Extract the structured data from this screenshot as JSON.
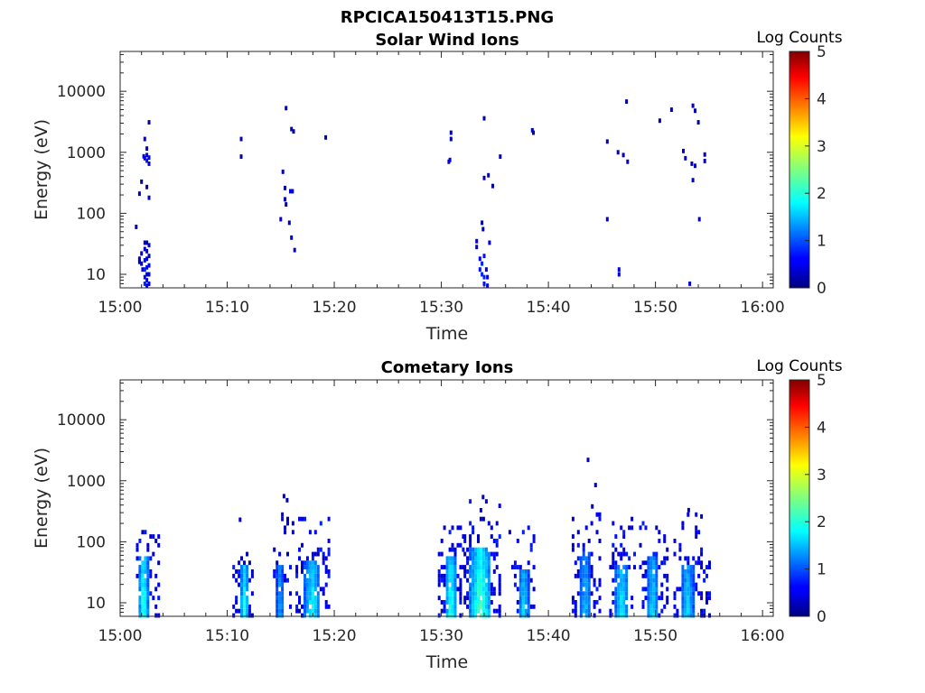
{
  "figure_title": "RPCICA150413T15.PNG",
  "colorbar": {
    "label": "Log Counts",
    "range": [
      0,
      5
    ],
    "ticks": [
      "0",
      "1",
      "2",
      "3",
      "4",
      "5"
    ],
    "colormap": "jet"
  },
  "chart_data": [
    {
      "type": "heatmap",
      "title": "Solar Wind Ions",
      "xlabel": "Time",
      "ylabel": "Energy (eV)",
      "xlim_minutes_after_15_00": [
        0,
        61
      ],
      "x_ticks": [
        "15:00",
        "15:10",
        "15:20",
        "15:30",
        "15:40",
        "15:50",
        "16:00"
      ],
      "y_scale": "log",
      "ylim": [
        6,
        45000
      ],
      "y_ticks": [
        "10",
        "100",
        "1000",
        "10000"
      ],
      "cells": [
        [
          1.8,
          18,
          0.4
        ],
        [
          1.8,
          16,
          0.3
        ],
        [
          2.0,
          22,
          0.5
        ],
        [
          2.0,
          15,
          0.3
        ],
        [
          2.1,
          12,
          0.4
        ],
        [
          2.3,
          33,
          0.4
        ],
        [
          2.3,
          26,
          0.6
        ],
        [
          2.3,
          17,
          0.7
        ],
        [
          2.3,
          12,
          0.8
        ],
        [
          2.3,
          9,
          0.7
        ],
        [
          2.3,
          7,
          0.8
        ],
        [
          2.5,
          33,
          0.3
        ],
        [
          2.5,
          24,
          0.5
        ],
        [
          2.5,
          18,
          0.6
        ],
        [
          2.5,
          13,
          0.7
        ],
        [
          2.5,
          10,
          0.5
        ],
        [
          2.5,
          8,
          0.6
        ],
        [
          2.5,
          6.5,
          0.5
        ],
        [
          2.7,
          30,
          0.4
        ],
        [
          2.7,
          20,
          0.3
        ],
        [
          2.7,
          14,
          0.6
        ],
        [
          2.7,
          10,
          0.4
        ],
        [
          2.7,
          7,
          0.5
        ],
        [
          1.5,
          60,
          0.3
        ],
        [
          1.8,
          210,
          0.3
        ],
        [
          2.0,
          330,
          0.2
        ],
        [
          2.3,
          1650,
          0.5
        ],
        [
          2.3,
          800,
          0.6
        ],
        [
          2.5,
          900,
          0.6
        ],
        [
          2.5,
          730,
          0.7
        ],
        [
          2.7,
          820,
          0.5
        ],
        [
          2.7,
          650,
          0.4
        ],
        [
          2.2,
          860,
          0.5
        ],
        [
          2.5,
          1150,
          0.3
        ],
        [
          2.7,
          3100,
          0.2
        ],
        [
          2.5,
          270,
          0.2
        ],
        [
          2.7,
          180,
          0.3
        ],
        [
          11.3,
          1650,
          0.3
        ],
        [
          11.3,
          850,
          0.3
        ],
        [
          15.5,
          5300,
          0.3
        ],
        [
          16.0,
          2400,
          0.3
        ],
        [
          16.2,
          2200,
          0.2
        ],
        [
          19.2,
          1750,
          0.2
        ],
        [
          15.2,
          480,
          0.3
        ],
        [
          15.4,
          260,
          0.2
        ],
        [
          15.4,
          170,
          0.3
        ],
        [
          15.5,
          140,
          0.2
        ],
        [
          15.0,
          80,
          0.5
        ],
        [
          15.9,
          230,
          0.4
        ],
        [
          16.1,
          230,
          0.4
        ],
        [
          15.8,
          70,
          0.3
        ],
        [
          16.0,
          40,
          0.4
        ],
        [
          16.3,
          25,
          0.4
        ],
        [
          30.9,
          2100,
          0.3
        ],
        [
          30.9,
          1650,
          0.3
        ],
        [
          30.8,
          750,
          0.5
        ],
        [
          30.7,
          700,
          0.4
        ],
        [
          34.0,
          3600,
          0.2
        ],
        [
          34.0,
          380,
          0.3
        ],
        [
          34.4,
          420,
          0.3
        ],
        [
          34.8,
          280,
          0.2
        ],
        [
          35.5,
          850,
          0.3
        ],
        [
          38.5,
          2300,
          0.3
        ],
        [
          38.6,
          2100,
          0.2
        ],
        [
          33.8,
          70,
          0.2
        ],
        [
          33.9,
          55,
          0.3
        ],
        [
          33.3,
          35,
          0.4
        ],
        [
          33.3,
          28,
          0.3
        ],
        [
          33.6,
          18,
          0.6
        ],
        [
          33.6,
          12,
          0.7
        ],
        [
          33.8,
          15,
          0.8
        ],
        [
          33.8,
          10,
          0.8
        ],
        [
          34.0,
          20,
          0.7
        ],
        [
          34.0,
          9,
          0.8
        ],
        [
          34.0,
          7,
          0.7
        ],
        [
          34.2,
          12,
          0.6
        ],
        [
          34.3,
          9,
          0.6
        ],
        [
          34.3,
          6.5,
          0.5
        ],
        [
          34.5,
          33,
          0.4
        ],
        [
          45.5,
          1500,
          0.3
        ],
        [
          46.5,
          1000,
          0.3
        ],
        [
          47.0,
          900,
          0.3
        ],
        [
          47.4,
          700,
          0.4
        ],
        [
          47.3,
          6800,
          0.2
        ],
        [
          50.4,
          3300,
          0.2
        ],
        [
          51.5,
          5000,
          0.2
        ],
        [
          52.6,
          1050,
          0.4
        ],
        [
          52.8,
          800,
          0.5
        ],
        [
          53.5,
          5800,
          0.3
        ],
        [
          53.7,
          4800,
          0.3
        ],
        [
          54.0,
          3100,
          0.2
        ],
        [
          54.6,
          920,
          0.3
        ],
        [
          54.6,
          720,
          0.4
        ],
        [
          53.4,
          650,
          0.3
        ],
        [
          53.7,
          600,
          0.4
        ],
        [
          53.5,
          350,
          0.4
        ],
        [
          54.1,
          80,
          0.5
        ],
        [
          45.5,
          80,
          0.4
        ],
        [
          46.6,
          12,
          0.6
        ],
        [
          46.6,
          10,
          0.5
        ],
        [
          53.2,
          7,
          0.4
        ]
      ]
    },
    {
      "type": "heatmap",
      "title": "Cometary Ions",
      "xlabel": "Time",
      "ylabel": "Energy (eV)",
      "xlim_minutes_after_15_00": [
        0,
        61
      ],
      "x_ticks": [
        "15:00",
        "15:10",
        "15:20",
        "15:30",
        "15:40",
        "15:50",
        "16:00"
      ],
      "y_scale": "log",
      "ylim": [
        6,
        45000
      ],
      "y_ticks": [
        "10",
        "100",
        "1000",
        "10000"
      ],
      "clusters": [
        {
          "t0": 1.6,
          "t1": 3.6,
          "core_t0": 1.8,
          "core_t1": 2.6,
          "core_top": 60,
          "e_top": 240,
          "peak": 2.2,
          "seed": 3,
          "density": 0.55,
          "scatter": 18
        },
        {
          "t0": 10.6,
          "t1": 12.4,
          "core_t0": 11.2,
          "core_t1": 12.0,
          "core_top": 45,
          "e_top": 100,
          "peak": 1.9,
          "seed": 7,
          "density": 0.5,
          "scatter": 10
        },
        {
          "t0": 14.4,
          "t1": 16.2,
          "core_t0": 14.6,
          "core_t1": 15.3,
          "core_top": 40,
          "e_top": 300,
          "peak": 1.2,
          "seed": 11,
          "density": 0.3,
          "scatter": 26
        },
        {
          "t0": 16.5,
          "t1": 19.7,
          "core_t0": 17.2,
          "core_t1": 18.7,
          "core_top": 50,
          "e_top": 250,
          "peak": 1.8,
          "seed": 13,
          "density": 0.55,
          "scatter": 30
        },
        {
          "t0": 29.8,
          "t1": 32.2,
          "core_t0": 30.4,
          "core_t1": 31.4,
          "core_top": 60,
          "e_top": 190,
          "peak": 2.1,
          "seed": 17,
          "density": 0.6,
          "scatter": 22
        },
        {
          "t0": 32.2,
          "t1": 35.6,
          "core_t0": 32.7,
          "core_t1": 34.6,
          "core_top": 80,
          "e_top": 500,
          "peak": 2.3,
          "seed": 19,
          "density": 0.6,
          "scatter": 35
        },
        {
          "t0": 36.4,
          "t1": 38.8,
          "core_t0": 37.2,
          "core_t1": 38.2,
          "core_top": 35,
          "e_top": 180,
          "peak": 1.6,
          "seed": 23,
          "density": 0.45,
          "scatter": 16
        },
        {
          "t0": 42.3,
          "t1": 44.8,
          "core_t0": 42.9,
          "core_t1": 44.0,
          "core_top": 70,
          "e_top": 300,
          "peak": 1.3,
          "seed": 29,
          "density": 0.5,
          "scatter": 24
        },
        {
          "t0": 45.8,
          "t1": 48.2,
          "core_t0": 46.2,
          "core_t1": 47.5,
          "core_top": 40,
          "e_top": 260,
          "peak": 1.7,
          "seed": 31,
          "density": 0.5,
          "scatter": 18
        },
        {
          "t0": 48.6,
          "t1": 51.3,
          "core_t0": 49.2,
          "core_t1": 50.3,
          "core_top": 55,
          "e_top": 220,
          "peak": 1.6,
          "seed": 37,
          "density": 0.5,
          "scatter": 20
        },
        {
          "t0": 51.8,
          "t1": 55.2,
          "core_t0": 52.4,
          "core_t1": 53.6,
          "core_top": 45,
          "e_top": 320,
          "peak": 1.5,
          "seed": 41,
          "density": 0.45,
          "scatter": 22
        }
      ],
      "cells": [
        [
          43.7,
          2200,
          0.4
        ],
        [
          44.4,
          850,
          0.3
        ],
        [
          44.1,
          380,
          0.3
        ],
        [
          15.3,
          560,
          0.3
        ],
        [
          15.6,
          480,
          0.2
        ],
        [
          11.2,
          230,
          0.3
        ],
        [
          33.9,
          540,
          0.3
        ],
        [
          53.1,
          330,
          0.4
        ],
        [
          54.3,
          260,
          0.3
        ]
      ]
    }
  ]
}
